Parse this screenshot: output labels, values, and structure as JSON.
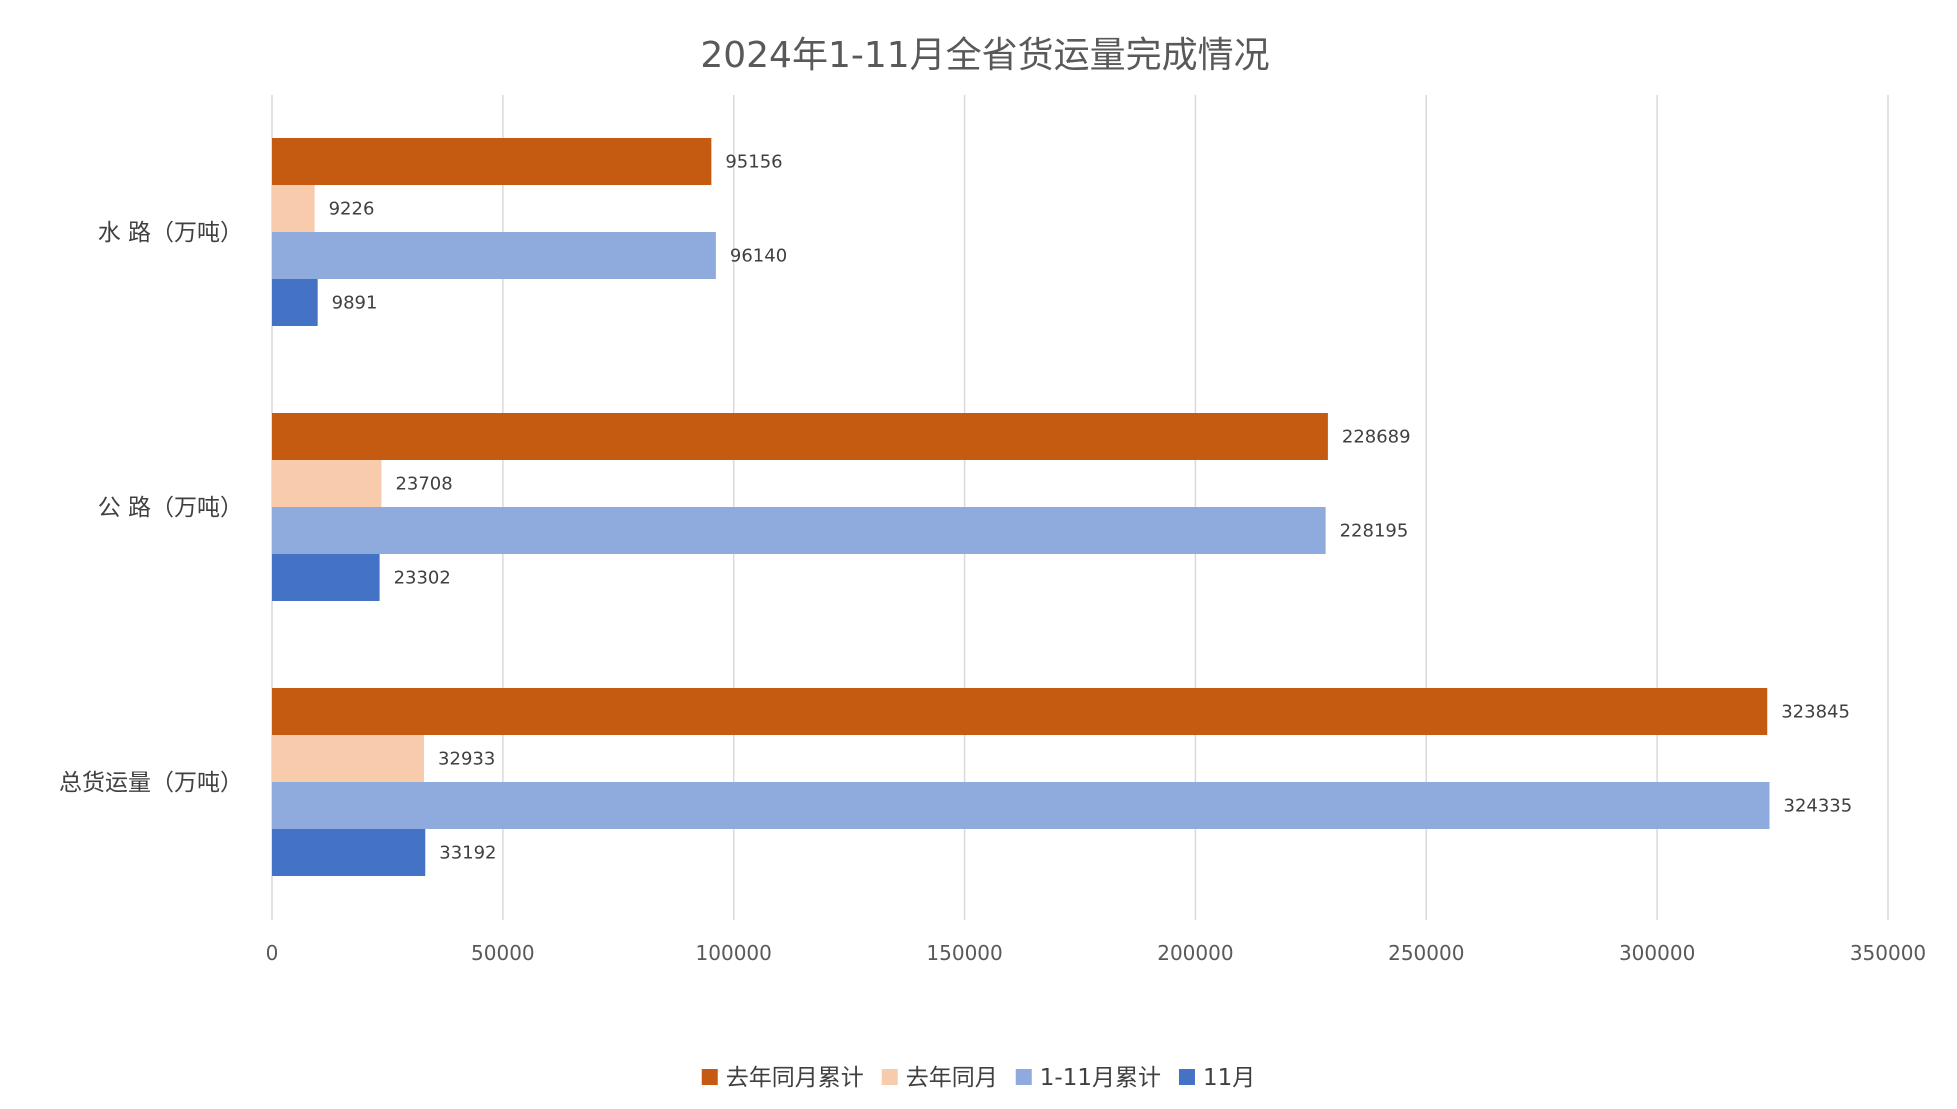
{
  "chart_data": {
    "type": "bar",
    "orientation": "horizontal",
    "title": "2024年1-11月全省货运量完成情况",
    "categories": [
      "水 路（万吨）",
      "公 路（万吨）",
      "总货运量（万吨）"
    ],
    "series": [
      {
        "name": "去年同月累计",
        "color": "#c55a11",
        "values": [
          95156,
          228689,
          323845
        ]
      },
      {
        "name": "去年同月",
        "color": "#f8cbad",
        "values": [
          9226,
          23708,
          32933
        ]
      },
      {
        "name": "1-11月累计",
        "color": "#8faadc",
        "values": [
          96140,
          228195,
          324335
        ]
      },
      {
        "name": "11月",
        "color": "#4472c4",
        "values": [
          9891,
          23302,
          33192
        ]
      }
    ],
    "xlim": [
      0,
      350000
    ],
    "xticks": [
      0,
      50000,
      100000,
      150000,
      200000,
      250000,
      300000,
      350000
    ],
    "xticklabels": [
      "0",
      "50000",
      "100000",
      "150000",
      "200000",
      "250000",
      "300000",
      "350000"
    ],
    "grid": true,
    "legend_position": "bottom",
    "data_labels": true
  }
}
